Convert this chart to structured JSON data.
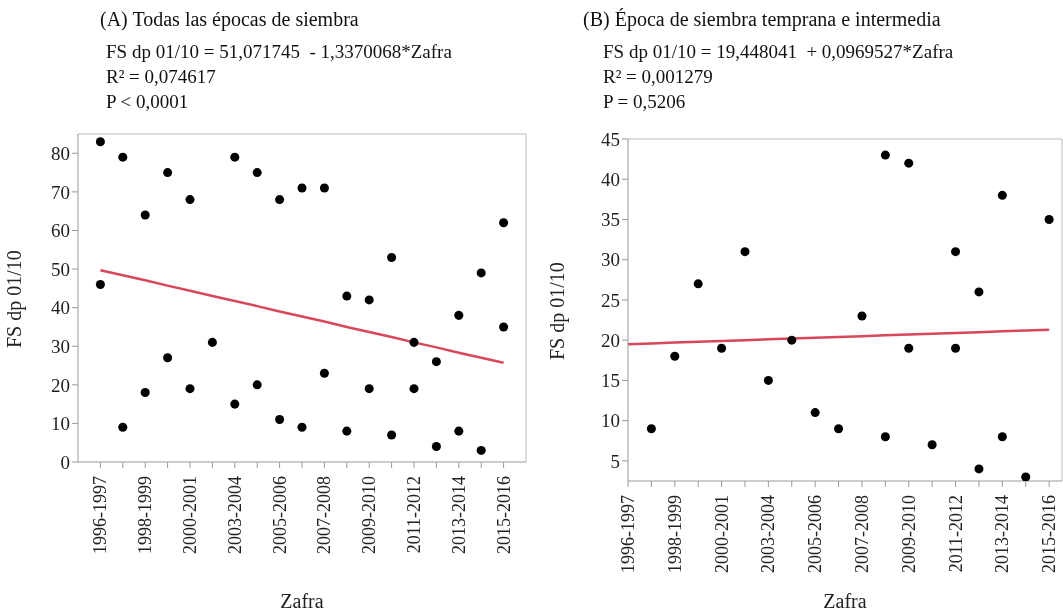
{
  "chart_data": [
    {
      "type": "scatter",
      "title": "(A) Todas las épocas de siembra",
      "annotations": [
        "FS dp 01/10 = 51,071745  - 1,3370068*Zafra",
        "R² = 0,074617",
        "P < 0,0001"
      ],
      "xlabel": "Zafra",
      "ylabel": "FS dp 01/10",
      "categories": [
        "1996-1997",
        null,
        "1998-1999",
        null,
        "2000-2001",
        null,
        "2003-2004",
        null,
        "2005-2006",
        null,
        "2007-2008",
        null,
        "2009-2010",
        null,
        "2011-2012",
        null,
        "2013-2014",
        null,
        "2015-2016"
      ],
      "ylim": [
        0,
        85
      ],
      "yticks": [
        0,
        10,
        20,
        30,
        40,
        50,
        60,
        70,
        80
      ],
      "series": [
        {
          "color": "#000000",
          "marker": "circle",
          "values": [
            83,
            79,
            64,
            75,
            68,
            31,
            79,
            75,
            68,
            71,
            71,
            43,
            42,
            53,
            31,
            26,
            38,
            49,
            62
          ]
        },
        {
          "color": "#000000",
          "marker": "circle",
          "values": [
            46,
            9,
            18,
            27,
            19,
            null,
            15,
            20,
            11,
            9,
            23,
            8,
            19,
            7,
            19,
            4,
            8,
            3,
            35
          ]
        },
        {
          "type": "line",
          "color": "#d9485a",
          "marker": "none",
          "values": [
            49.7,
            48.4,
            47.1,
            45.7,
            44.4,
            43.0,
            41.7,
            40.4,
            39.0,
            37.7,
            36.4,
            35.0,
            33.7,
            32.4,
            31.0,
            29.7,
            28.3,
            27.0,
            25.7
          ]
        }
      ]
    },
    {
      "type": "scatter",
      "title": "(B) Época de siembra temprana e intermedia",
      "annotations": [
        "FS dp 01/10 = 19,448041  + 0,0969527*Zafra",
        "R² = 0,001279",
        "P = 0,5206"
      ],
      "xlabel": "Zafra",
      "ylabel": "FS dp 01/10",
      "categories": [
        "1996-1997",
        null,
        "1998-1999",
        null,
        "2000-2001",
        null,
        "2003-2004",
        null,
        "2005-2006",
        null,
        "2007-2008",
        null,
        "2009-2010",
        null,
        "2011-2012",
        null,
        "2013-2014",
        null,
        "2015-2016"
      ],
      "ylim": [
        2.5,
        45
      ],
      "yticks": [
        5,
        10,
        15,
        20,
        25,
        30,
        35,
        40,
        45
      ],
      "series": [
        {
          "color": "#000000",
          "marker": "circle",
          "values": [
            null,
            9,
            18,
            27,
            19,
            31,
            15,
            20,
            11,
            9,
            23,
            43,
            42,
            7,
            31,
            26,
            38,
            3,
            35
          ]
        },
        {
          "color": "#000000",
          "marker": "circle",
          "values": [
            null,
            null,
            null,
            null,
            null,
            null,
            null,
            null,
            null,
            null,
            null,
            8,
            19,
            null,
            19,
            4,
            8,
            null,
            null
          ]
        },
        {
          "type": "line",
          "color": "#d9485a",
          "marker": "none",
          "values": [
            19.5,
            19.6,
            19.7,
            19.8,
            19.9,
            20.0,
            20.1,
            20.2,
            20.3,
            20.4,
            20.5,
            20.6,
            20.7,
            20.8,
            20.9,
            21.0,
            21.1,
            21.2,
            21.3
          ]
        }
      ]
    }
  ]
}
